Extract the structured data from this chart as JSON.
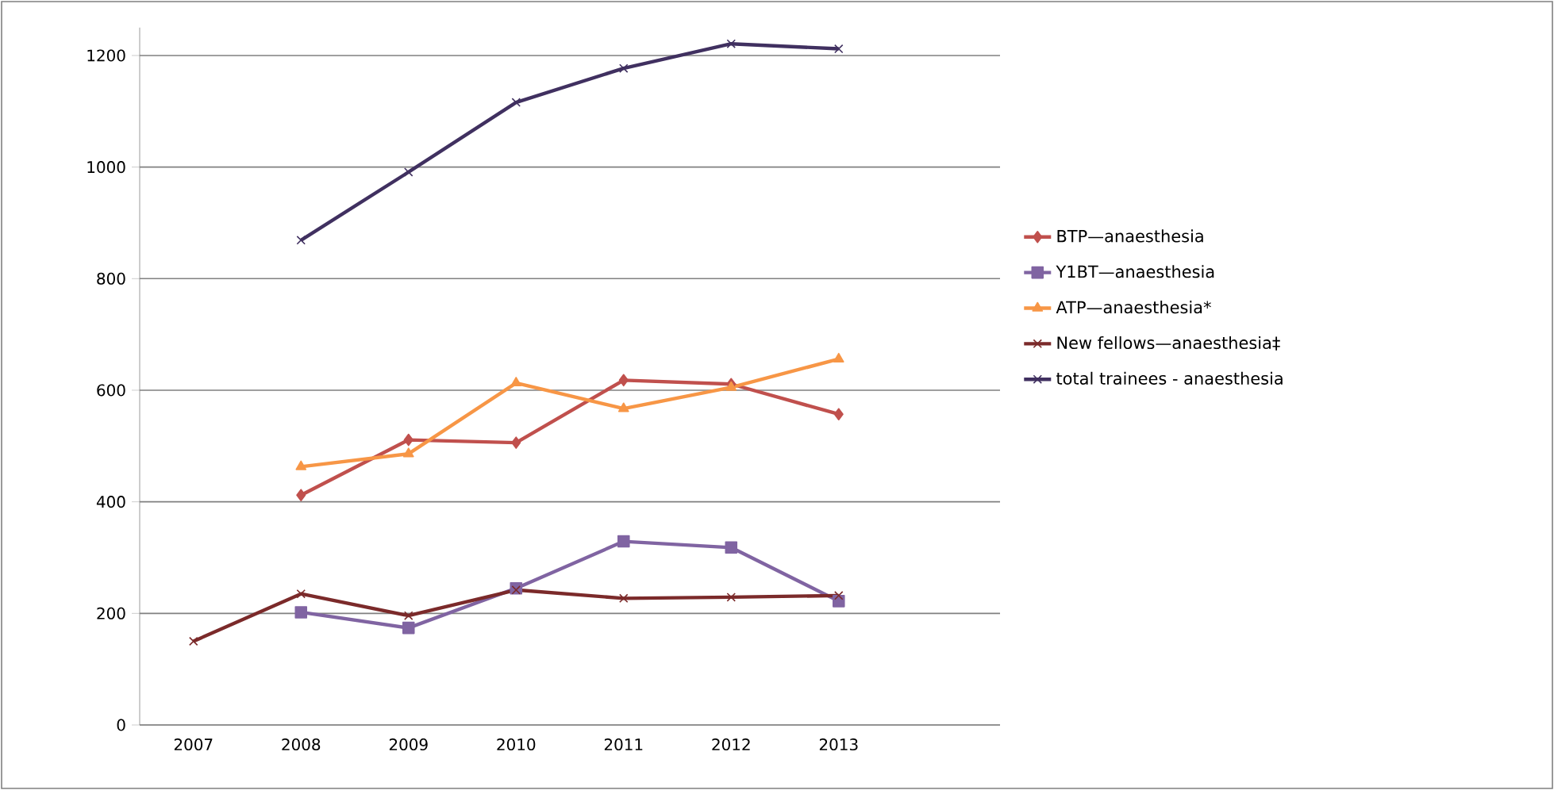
{
  "chart_data": {
    "type": "line",
    "categories": [
      "2007",
      "2008",
      "2009",
      "2010",
      "2011",
      "2012",
      "2013",
      null
    ],
    "series": [
      {
        "name": "BTP—anaesthesia",
        "color": "#c0504d",
        "marker": "diamond",
        "values": [
          null,
          412,
          511,
          506,
          618,
          611,
          557,
          null
        ]
      },
      {
        "name": "Y1BT—anaesthesia",
        "color": "#8064a2",
        "marker": "square",
        "values": [
          null,
          202,
          174,
          245,
          329,
          318,
          222,
          null
        ]
      },
      {
        "name": "ATP—anaesthesia*",
        "color": "#f79646",
        "marker": "triangle",
        "values": [
          null,
          463,
          486,
          613,
          567,
          605,
          656,
          null
        ]
      },
      {
        "name": "New fellows—anaesthesia‡",
        "color": "#7b2a2a",
        "marker": "cross",
        "values": [
          150,
          235,
          196,
          242,
          227,
          229,
          232,
          null
        ]
      },
      {
        "name": "total trainees - anaesthesia",
        "color": "#403060",
        "marker": "cross",
        "values": [
          null,
          869,
          991,
          1116,
          1177,
          1221,
          1212,
          null
        ]
      }
    ],
    "ylim": [
      0,
      1250
    ],
    "yticks": [
      0,
      200,
      400,
      600,
      800,
      1000,
      1200
    ],
    "grid": "y",
    "legend": "right",
    "line_style": "solid"
  }
}
